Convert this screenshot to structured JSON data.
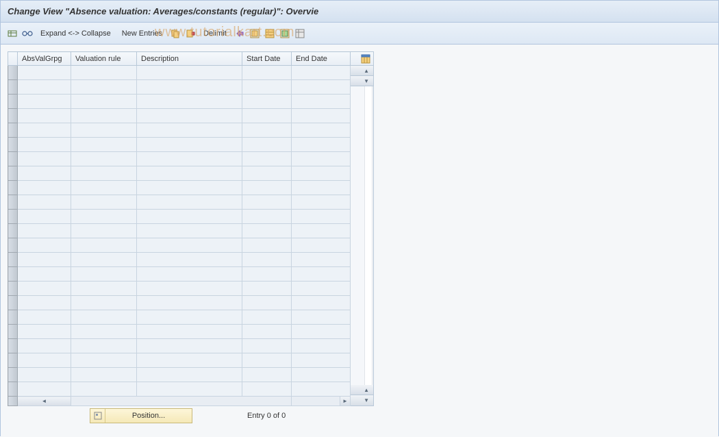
{
  "title": "Change View \"Absence valuation: Averages/constants (regular)\": Overvie",
  "toolbar": {
    "expand_collapse_label": "Expand <-> Collapse",
    "new_entries_label": "New Entries",
    "delimit_label": "Delimit"
  },
  "watermark": "www.tutorialkart.com",
  "table": {
    "columns": {
      "absvalgrpg": "AbsValGrpg",
      "valuation_rule": "Valuation rule",
      "description": "Description",
      "start_date": "Start Date",
      "end_date": "End Date"
    },
    "row_count": 23
  },
  "footer": {
    "position_label": "Position...",
    "entry_status": "Entry 0 of 0"
  },
  "colors": {
    "header_bg_start": "#e6eef7",
    "header_bg_end": "#d4e1f0",
    "cell_bg": "#edf2f7",
    "border": "#b8c8d8",
    "watermark": "#d9a86c"
  }
}
